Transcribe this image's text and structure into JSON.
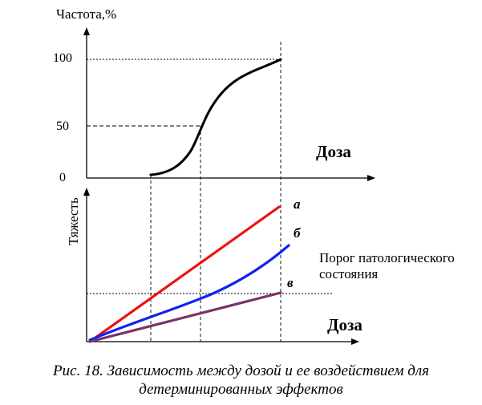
{
  "top_chart": {
    "ylabel": "Частота,%",
    "xlabel": "Доза",
    "ticks": [
      "100",
      "50",
      "0"
    ]
  },
  "bottom_chart": {
    "ylabel": "Тяжесть",
    "xlabel": "Доза",
    "threshold_label_line1": "Порог патологического",
    "threshold_label_line2": "состояния",
    "curves": [
      {
        "label": "а",
        "color": "#ee1111"
      },
      {
        "label": "б",
        "color": "#1122ee"
      },
      {
        "label": "в",
        "color": "#7a2f6a"
      }
    ]
  },
  "caption": {
    "line1": "Рис. 18. Зависимость между дозой и ее воздействием для",
    "line2": "детерминированных эффектов"
  }
}
